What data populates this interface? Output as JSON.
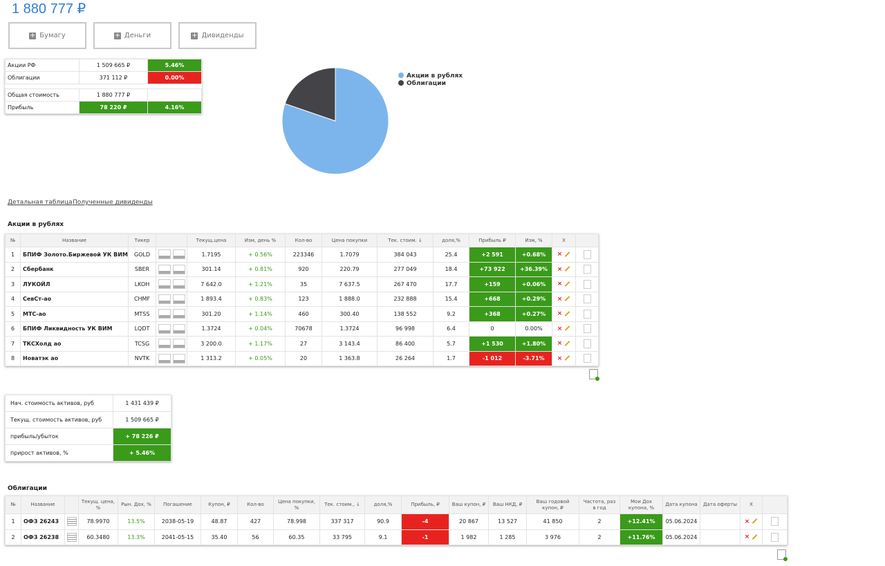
{
  "header": {
    "total": "1 880 777 ₽",
    "buttons": [
      "Бумагу",
      "Деньги",
      "Дивиденды"
    ]
  },
  "summary": {
    "rows": [
      {
        "label": "Акции РФ",
        "value": "1 509 665 ₽",
        "pct": "5.46%"
      },
      {
        "label": "Облигации",
        "value": "371 112 ₽",
        "pct": "0.00%"
      },
      {
        "label": "Общая стоимость",
        "value": "1 880 777 ₽"
      },
      {
        "label": "Прибыль",
        "value": "78 220 ₽",
        "pct": "4.16%"
      }
    ]
  },
  "chart_data": {
    "type": "pie",
    "categories": [
      "Акции в рублях",
      "Облигации"
    ],
    "values": [
      1509665,
      371112
    ],
    "colors": [
      "#7cb5ec",
      "#434348"
    ],
    "legend": "right"
  },
  "links": [
    "Детальная таблица",
    "Полученные дивиденды"
  ],
  "stocks": {
    "title": "Акции в рублях",
    "headers": [
      "№",
      "Название",
      "Тикер",
      "Текущ.цена",
      "Изм, день %",
      "Кол-во",
      "Цена покупки",
      "Тек. стоим. ↓",
      "доля,%",
      "Прибыль ₽",
      "Изм, %",
      "X"
    ],
    "rows": [
      [
        "1",
        "БПИФ Золото.Биржевой УК ВИМ",
        "GOLD",
        "1.7195",
        "+ 0.56%",
        "223346",
        "1.7079",
        "384 043",
        "25.4",
        "+2 591",
        "+0.68%"
      ],
      [
        "2",
        "Сбербанк",
        "SBER",
        "301.14",
        "+ 0.81%",
        "920",
        "220.79",
        "277 049",
        "18.4",
        "+73 922",
        "+36.39%"
      ],
      [
        "3",
        "ЛУКОЙЛ",
        "LKOH",
        "7 642.0",
        "+ 1.21%",
        "35",
        "7 637.5",
        "267 470",
        "17.7",
        "+159",
        "+0.06%"
      ],
      [
        "4",
        "СевСт-ао",
        "CHMF",
        "1 893.4",
        "+ 0.83%",
        "123",
        "1 888.0",
        "232 888",
        "15.4",
        "+668",
        "+0.29%"
      ],
      [
        "5",
        "МТС-ао",
        "MTSS",
        "301.20",
        "+ 1.14%",
        "460",
        "300.40",
        "138 552",
        "9.2",
        "+368",
        "+0.27%"
      ],
      [
        "6",
        "БПИФ Ликвидность УК ВИМ",
        "LQDT",
        "1.3724",
        "+ 0.04%",
        "70678",
        "1.3724",
        "96 998",
        "6.4",
        "0",
        "0.00%"
      ],
      [
        "7",
        "ТКСХолд ао",
        "TCSG",
        "3 200.0",
        "+ 1.17%",
        "27",
        "3 143.4",
        "86 400",
        "5.7",
        "+1 530",
        "+1.80%"
      ],
      [
        "8",
        "Новатэк ао",
        "NVTK",
        "1 313.2",
        "+ 0.05%",
        "20",
        "1 363.8",
        "26 264",
        "1.7",
        "-1 012",
        "-3.71%"
      ]
    ]
  },
  "assets": {
    "rows": [
      [
        "Нач. стоимость активов, руб",
        "1 431 439 ₽"
      ],
      [
        "Текущ. стоимость активов, руб",
        "1 509 665 ₽"
      ],
      [
        "прибыль/убыток",
        "+ 78 226 ₽"
      ],
      [
        "прирост активов, %",
        "+ 5.46%"
      ]
    ]
  },
  "bonds": {
    "title": "Облигации",
    "headers": [
      "№",
      "Название",
      "Текущ. цена, %",
      "Рын. Дох, %",
      "Погашение",
      "Купон, ₽",
      "Кол-во",
      "Цена покупки, %",
      "Тек. стоим., ↓",
      "доля,%",
      "Прибыль, ₽",
      "Ваш купон, ₽",
      "Ваш НКД, ₽",
      "Ваш годовой купон, ₽",
      "Частота, раз в год",
      "Мои Дох купона, %",
      "Дата купона",
      "Дата оферты",
      "X"
    ],
    "rows": [
      [
        "1",
        "ОФЗ 26243",
        "78.9970",
        "13.5%",
        "2038-05-19",
        "48.87",
        "427",
        "78.998",
        "337 317",
        "90.9",
        "-4",
        "20 867",
        "13 527",
        "41 850",
        "2",
        "+12.41%",
        "05.06.2024"
      ],
      [
        "2",
        "ОФЗ 26238",
        "60.3480",
        "13.3%",
        "2041-05-15",
        "35.40",
        "56",
        "60.35",
        "33 795",
        "9.1",
        "-1",
        "1 982",
        "1 285",
        "3 976",
        "2",
        "+11.76%",
        "05.06.2024"
      ]
    ]
  }
}
